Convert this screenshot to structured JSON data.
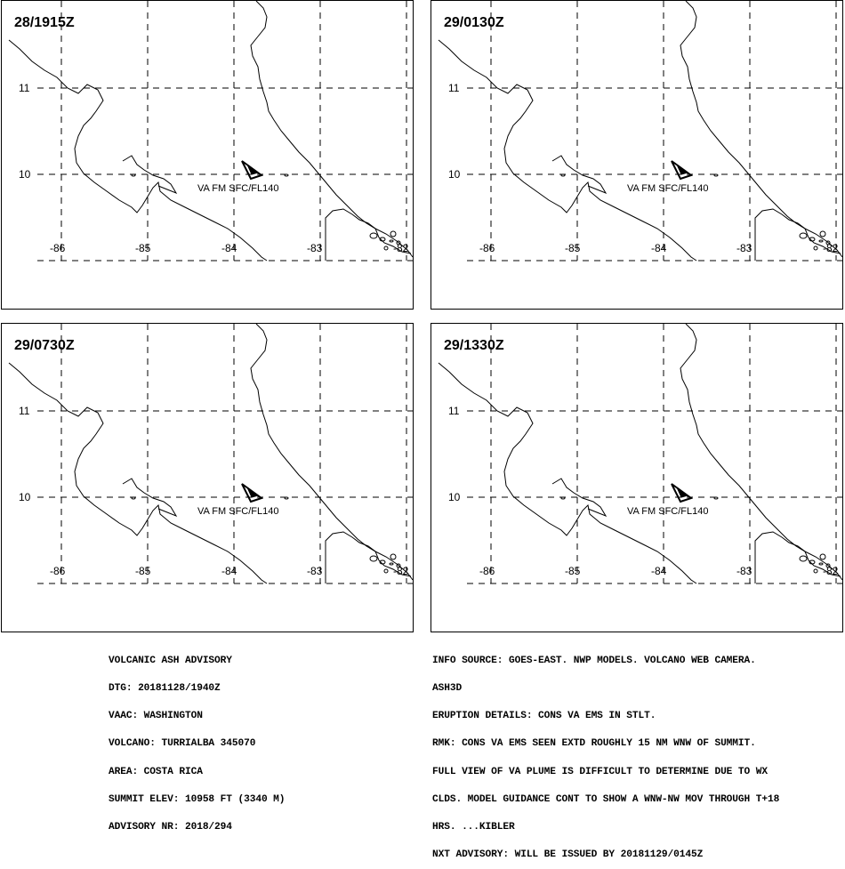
{
  "panels": [
    {
      "time": "28/1915Z"
    },
    {
      "time": "29/0130Z"
    },
    {
      "time": "29/0730Z"
    },
    {
      "time": "29/1330Z"
    }
  ],
  "map": {
    "lat_labels": [
      "11",
      "10"
    ],
    "lon_labels": [
      "-86",
      "-85",
      "-84",
      "-83",
      "-82"
    ],
    "plume_label": "VA FM SFC/FL140",
    "volcano_icon": "triangle-volcano-icon",
    "line_color": "#000000"
  },
  "advisory_left": [
    "VOLCANIC ASH ADVISORY",
    "DTG: 20181128/1940Z",
    "VAAC: WASHINGTON",
    "VOLCANO: TURRIALBA 345070",
    "AREA: COSTA RICA",
    "SUMMIT ELEV: 10958 FT (3340 M)",
    "ADVISORY NR: 2018/294"
  ],
  "advisory_right": [
    "INFO SOURCE: GOES-EAST. NWP MODELS. VOLCANO WEB CAMERA.",
    "ASH3D",
    "ERUPTION DETAILS: CONS VA EMS IN STLT.",
    "RMK: CONS VA EMS SEEN EXTD ROUGHLY 15 NM WNW OF SUMMIT.",
    "FULL VIEW OF VA PLUME IS DIFFICULT TO DETERMINE DUE TO WX",
    "CLDS. MODEL GUIDANCE CONT TO SHOW A WNW-NW MOV THROUGH T+18",
    "HRS. ...KIBLER",
    "NXT ADVISORY: WILL BE ISSUED BY 20181129/0145Z"
  ]
}
